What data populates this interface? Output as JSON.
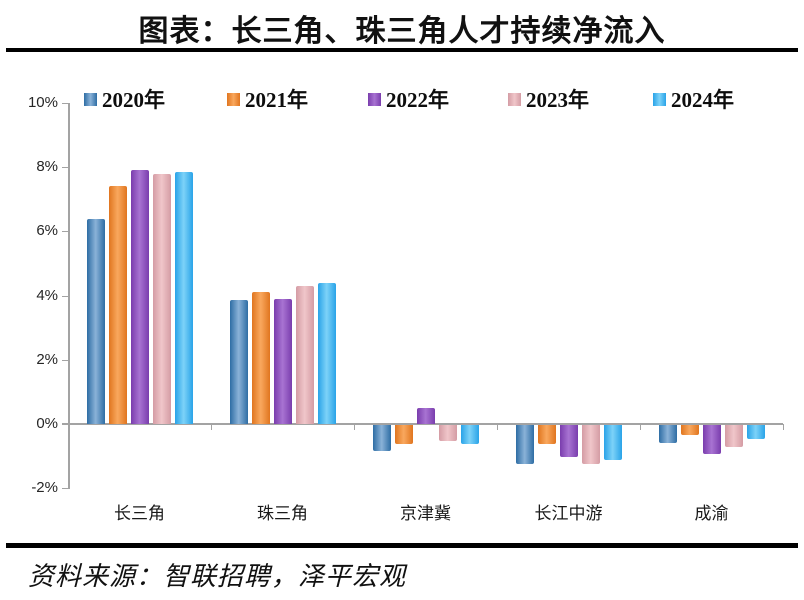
{
  "header": {
    "title": "图表：长三角、珠三角人才持续净流入"
  },
  "footer": {
    "source": "资料来源：智联招聘，泽平宏观"
  },
  "chart_data": {
    "type": "bar",
    "title": "图表：长三角、珠三角人才持续净流入",
    "categories": [
      "长三角",
      "珠三角",
      "京津冀",
      "长江中游",
      "成渝"
    ],
    "series": [
      {
        "name": "2020年",
        "values": [
          6.4,
          3.85,
          -0.8,
          -1.2,
          -0.55
        ],
        "color_dark": "#2e6da4",
        "color_light": "#8ab2d8"
      },
      {
        "name": "2021年",
        "values": [
          7.4,
          4.1,
          -0.6,
          -0.6,
          -0.3
        ],
        "color_dark": "#e0751f",
        "color_light": "#f9a85e"
      },
      {
        "name": "2022年",
        "values": [
          7.9,
          3.9,
          0.5,
          -1.0,
          -0.9
        ],
        "color_dark": "#7a3dad",
        "color_light": "#a873d2"
      },
      {
        "name": "2023年",
        "values": [
          7.8,
          4.3,
          -0.5,
          -1.2,
          -0.7
        ],
        "color_dark": "#d49ca4",
        "color_light": "#f0c6ca"
      },
      {
        "name": "2024年",
        "values": [
          7.85,
          4.4,
          -0.6,
          -1.1,
          -0.45
        ],
        "color_dark": "#29a3e8",
        "color_light": "#7dd2f8"
      }
    ],
    "ylabel": "",
    "xlabel": "",
    "ylim": [
      -2,
      10
    ],
    "y_tick_labels": [
      "10%",
      "8%",
      "6%",
      "4%",
      "2%",
      "0%",
      "-2%"
    ],
    "y_tick_values": [
      10,
      8,
      6,
      4,
      2,
      0,
      -2
    ],
    "axis_color": "#a3a3a3",
    "grid": false,
    "legend_position": "top"
  }
}
